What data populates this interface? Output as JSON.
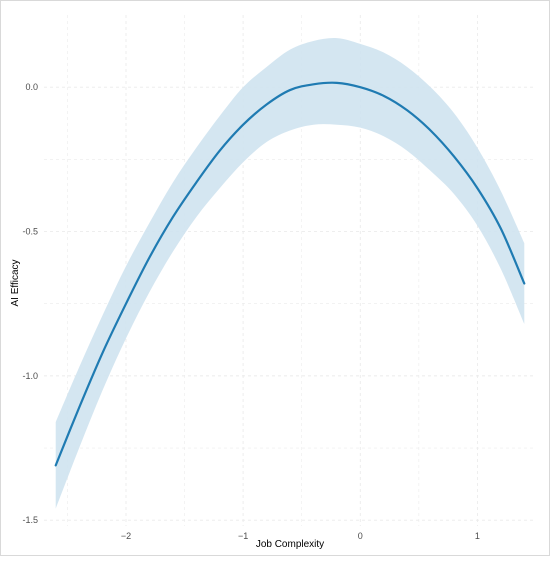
{
  "chart_data": {
    "type": "line",
    "title": "",
    "xlabel": "Job Complexity",
    "ylabel": "AI Efficacy",
    "xlim": [
      -2.7,
      1.5
    ],
    "ylim": [
      -1.52,
      0.25
    ],
    "xticks": [
      -2,
      -1,
      0,
      1
    ],
    "xtick_labels": [
      "−2",
      "−1",
      "0",
      "1"
    ],
    "yticks": [
      0.0,
      -0.5,
      -1.0,
      -1.5
    ],
    "ytick_labels": [
      "0.0",
      "-0.5",
      "-1.0",
      "-1.5"
    ],
    "grid": true,
    "legend": "none",
    "colors": {
      "line": "#1f7bb2",
      "band": "#cfe3f0",
      "grid": "#ebebeb"
    },
    "series": [
      {
        "type": "line",
        "x": [
          -2.6,
          -2.4,
          -2.2,
          -2.0,
          -1.8,
          -1.6,
          -1.4,
          -1.2,
          -1.0,
          -0.8,
          -0.6,
          -0.4,
          -0.2,
          0.0,
          0.2,
          0.4,
          0.6,
          0.8,
          1.0,
          1.2,
          1.4
        ],
        "y": [
          -1.31,
          -1.11,
          -0.92,
          -0.75,
          -0.59,
          -0.45,
          -0.33,
          -0.22,
          -0.13,
          -0.06,
          -0.01,
          0.01,
          0.015,
          0.0,
          -0.03,
          -0.08,
          -0.15,
          -0.24,
          -0.35,
          -0.49,
          -0.68
        ]
      },
      {
        "type": "band",
        "x": [
          -2.6,
          -2.4,
          -2.2,
          -2.0,
          -1.8,
          -1.6,
          -1.4,
          -1.2,
          -1.0,
          -0.8,
          -0.6,
          -0.4,
          -0.2,
          0.0,
          0.2,
          0.4,
          0.6,
          0.8,
          1.0,
          1.2,
          1.4
        ],
        "lower": [
          -1.46,
          -1.25,
          -1.05,
          -0.87,
          -0.71,
          -0.57,
          -0.45,
          -0.35,
          -0.26,
          -0.19,
          -0.15,
          -0.13,
          -0.13,
          -0.14,
          -0.17,
          -0.22,
          -0.29,
          -0.37,
          -0.48,
          -0.63,
          -0.82
        ],
        "upper": [
          -1.16,
          -0.97,
          -0.79,
          -0.62,
          -0.47,
          -0.33,
          -0.21,
          -0.1,
          0.0,
          0.07,
          0.13,
          0.16,
          0.17,
          0.15,
          0.12,
          0.07,
          0.0,
          -0.09,
          -0.21,
          -0.36,
          -0.54
        ]
      }
    ]
  }
}
